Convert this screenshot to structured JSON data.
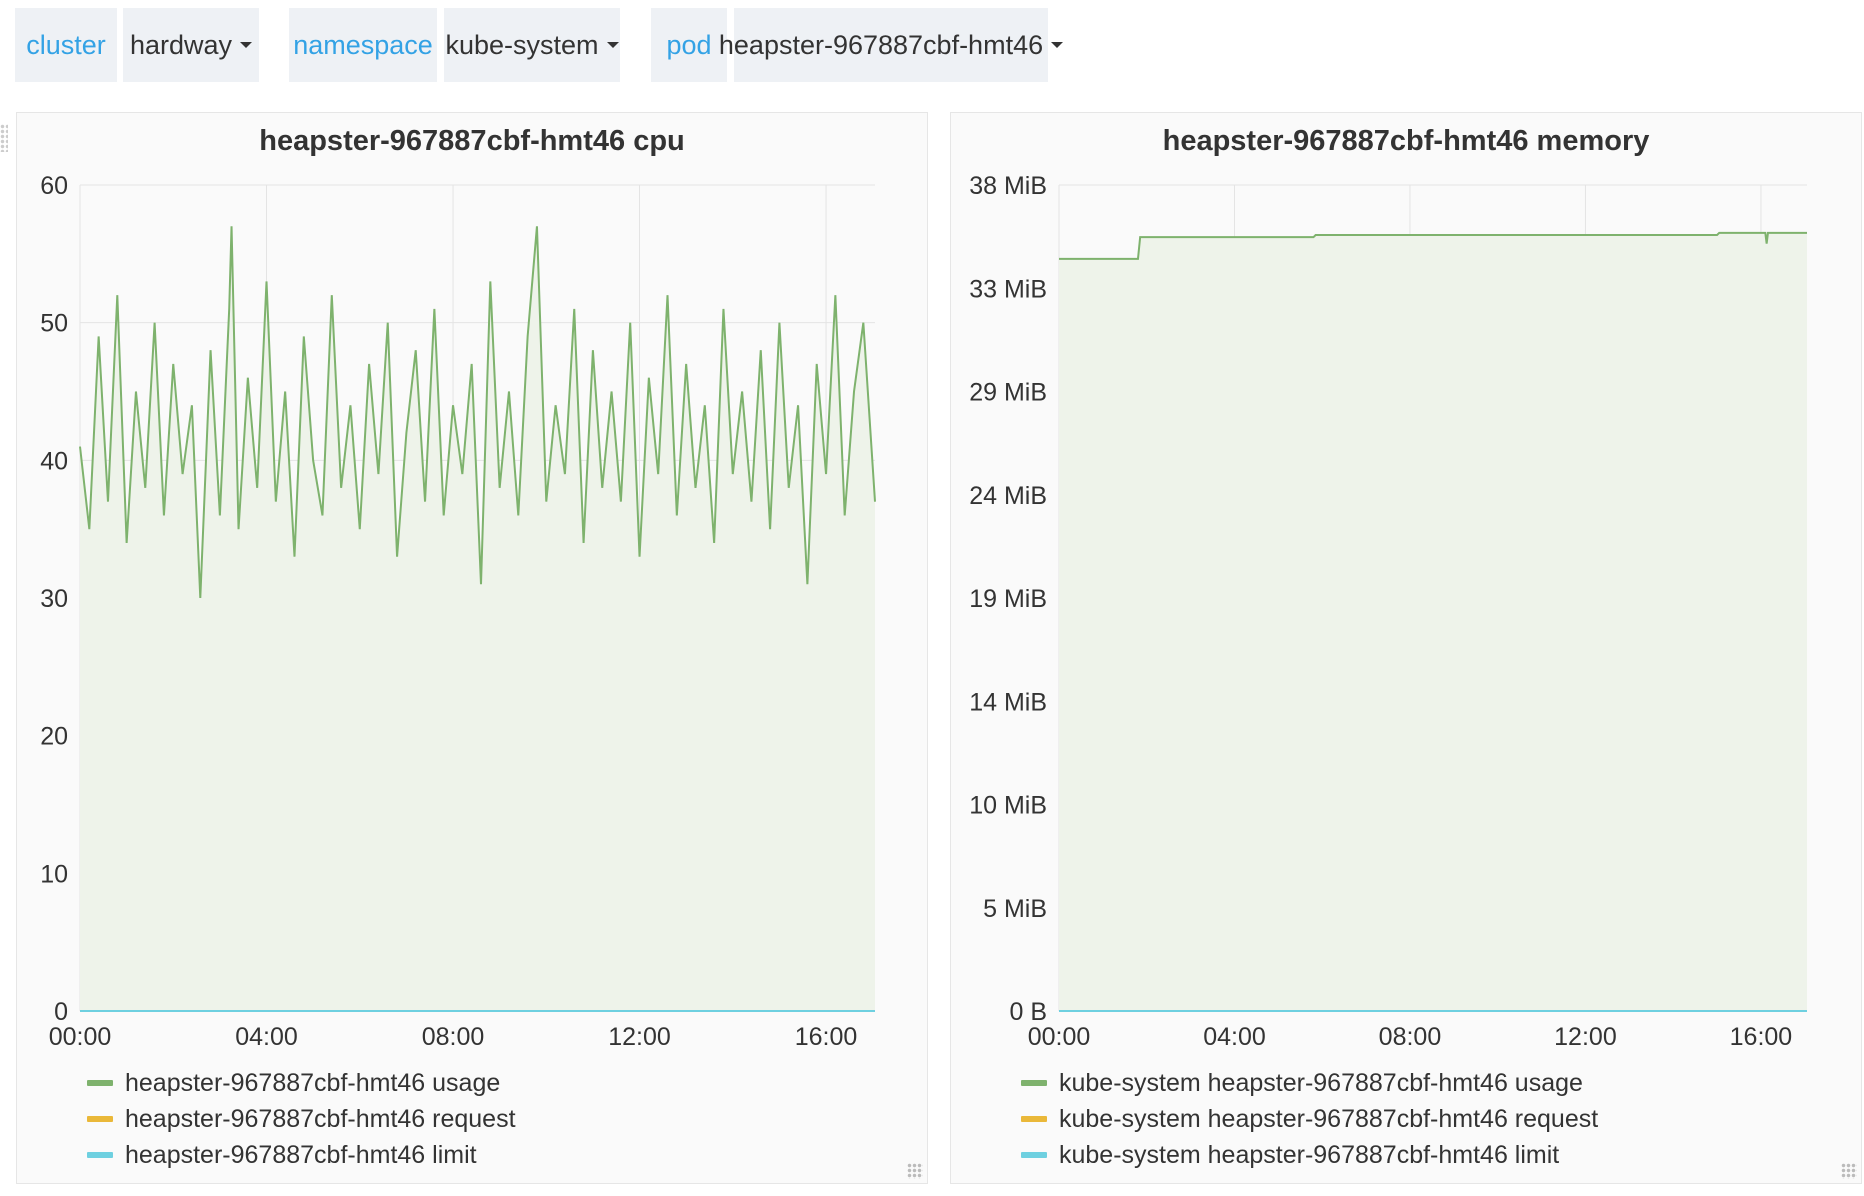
{
  "variables": {
    "cluster": {
      "label": "cluster",
      "value": "hardway"
    },
    "namespace": {
      "label": "namespace",
      "value": "kube-system"
    },
    "pod": {
      "label": "pod",
      "value": "heapster-967887cbf-hmt46"
    }
  },
  "colors": {
    "usage": "#7eb26d",
    "request": "#eab839",
    "limit": "#6ed0e0",
    "label_blue": "#33a2e5",
    "grid": "#e4e4e4",
    "fill": "#eef3ea"
  },
  "chart_data": [
    {
      "type": "line",
      "title": "heapster-967887cbf-hmt46 cpu",
      "xlabel": "",
      "ylabel": "",
      "ylim": [
        0,
        60
      ],
      "yticks": [
        "0",
        "10",
        "20",
        "30",
        "40",
        "50",
        "60"
      ],
      "x_ticks": [
        "00:00",
        "04:00",
        "08:00",
        "12:00",
        "16:00"
      ],
      "xlim_hours": [
        0,
        17.05
      ],
      "series": [
        {
          "name": "heapster-967887cbf-hmt46 usage",
          "color": "#7eb26d",
          "fill": true,
          "x_hours": [
            0,
            0.2,
            0.4,
            0.6,
            0.8,
            1,
            1.2,
            1.4,
            1.6,
            1.8,
            2,
            2.2,
            2.4,
            2.58,
            2.8,
            3,
            3.2,
            3.25,
            3.4,
            3.6,
            3.8,
            4,
            4.2,
            4.4,
            4.6,
            4.8,
            5,
            5.2,
            5.4,
            5.6,
            5.8,
            6,
            6.2,
            6.4,
            6.6,
            6.8,
            7,
            7.2,
            7.4,
            7.6,
            7.8,
            8,
            8.2,
            8.4,
            8.6,
            8.8,
            9,
            9.2,
            9.4,
            9.6,
            9.8,
            10,
            10.2,
            10.4,
            10.6,
            10.8,
            11,
            11.2,
            11.4,
            11.6,
            11.8,
            12,
            12.2,
            12.4,
            12.6,
            12.8,
            13,
            13.2,
            13.4,
            13.6,
            13.8,
            14,
            14.2,
            14.4,
            14.6,
            14.8,
            15,
            15.2,
            15.4,
            15.6,
            15.8,
            16,
            16.2,
            16.4,
            16.6,
            16.8,
            17.05
          ],
          "values": [
            41,
            35,
            49,
            37,
            52,
            34,
            45,
            38,
            50,
            36,
            47,
            39,
            44,
            30,
            48,
            36,
            51,
            57,
            35,
            46,
            38,
            53,
            37,
            45,
            33,
            49,
            40,
            36,
            52,
            38,
            44,
            35,
            47,
            39,
            50,
            33,
            42,
            48,
            37,
            51,
            36,
            44,
            39,
            47,
            31,
            53,
            38,
            45,
            36,
            49,
            57,
            37,
            44,
            39,
            51,
            34,
            48,
            38,
            45,
            37,
            50,
            33,
            46,
            39,
            52,
            36,
            47,
            38,
            44,
            34,
            51,
            39,
            45,
            37,
            48,
            35,
            50,
            38,
            44,
            31,
            47,
            39,
            52,
            36,
            45,
            50,
            37
          ]
        },
        {
          "name": "heapster-967887cbf-hmt46 request",
          "color": "#eab839",
          "x_hours": [
            0,
            17.05
          ],
          "values": [
            0,
            0
          ]
        },
        {
          "name": "heapster-967887cbf-hmt46 limit",
          "color": "#6ed0e0",
          "x_hours": [
            0,
            17.05
          ],
          "values": [
            0,
            0
          ]
        }
      ]
    },
    {
      "type": "line",
      "title": "heapster-967887cbf-hmt46 memory",
      "xlabel": "",
      "ylabel": "",
      "y_unit": "MiB",
      "ylim": [
        0,
        38
      ],
      "yticks": [
        "0 B",
        "5 MiB",
        "10 MiB",
        "14 MiB",
        "19 MiB",
        "24 MiB",
        "29 MiB",
        "33 MiB",
        "38 MiB"
      ],
      "x_ticks": [
        "00:00",
        "04:00",
        "08:00",
        "12:00",
        "16:00"
      ],
      "xlim_hours": [
        0,
        17.05
      ],
      "series": [
        {
          "name": "kube-system heapster-967887cbf-hmt46 usage",
          "color": "#7eb26d",
          "fill": true,
          "x_hours": [
            0,
            1.8,
            1.85,
            5.8,
            5.85,
            15.0,
            15.05,
            16.1,
            16.13,
            16.16,
            17.05
          ],
          "values": [
            34.6,
            34.6,
            35.6,
            35.6,
            35.7,
            35.7,
            35.8,
            35.8,
            35.3,
            35.8,
            35.8
          ]
        },
        {
          "name": "kube-system heapster-967887cbf-hmt46 request",
          "color": "#eab839",
          "x_hours": [
            0,
            17.05
          ],
          "values": [
            0,
            0
          ]
        },
        {
          "name": "kube-system heapster-967887cbf-hmt46 limit",
          "color": "#6ed0e0",
          "x_hours": [
            0,
            17.05
          ],
          "values": [
            0,
            0
          ]
        }
      ]
    }
  ]
}
